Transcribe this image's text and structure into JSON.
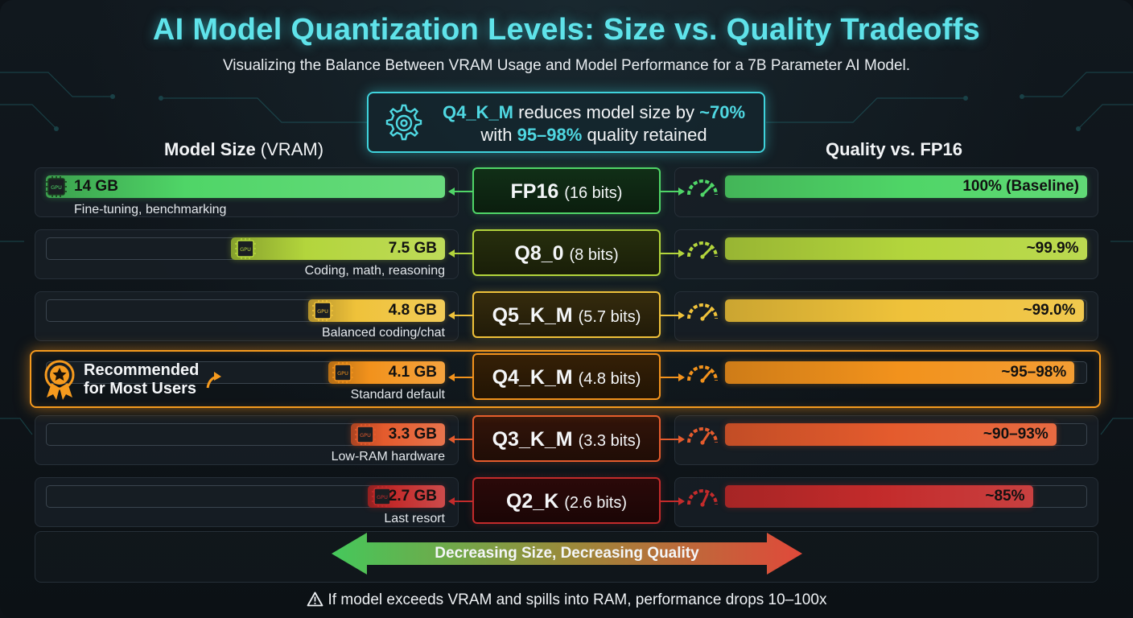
{
  "title": "AI Model Quantization Levels: Size vs. Quality Tradeoffs",
  "subtitle": "Visualizing the Balance Between VRAM Usage and Model Performance for a 7B Parameter AI Model.",
  "callout": {
    "highlight_format": "Q4_K_M",
    "text_1": " reduces model size by ",
    "highlight_reduction": "~70%",
    "text_2": "with ",
    "highlight_quality": "95–98%",
    "text_3": " quality retained"
  },
  "left_heading": {
    "bold": "Model Size",
    "light": " (VRAM)"
  },
  "right_heading": "Quality vs. FP16",
  "gpu_chip_label": "GPU",
  "recommended": {
    "line1": "Recommended",
    "line2": "for Most Users"
  },
  "direction_label": "Decreasing Size, Decreasing Quality",
  "warning": "If model exceeds VRAM and spills into RAM, performance drops 10–100x",
  "colors": {
    "accent_cyan": "#3fd3dc",
    "recommended_orange": "#f59a1e"
  },
  "chart_data": {
    "type": "bar",
    "categories": [
      "FP16",
      "Q8_0",
      "Q5_K_M",
      "Q4_K_M",
      "Q3_K_M",
      "Q2_K"
    ],
    "bits_labels": [
      "(16 bits)",
      "(8 bits)",
      "(5.7 bits)",
      "(4.8 bits)",
      "(3.3 bits)",
      "(2.6 bits)"
    ],
    "series": [
      {
        "name": "Model Size (VRAM)",
        "unit": "GB",
        "values": [
          14,
          7.5,
          4.8,
          4.1,
          3.3,
          2.7
        ],
        "value_labels": [
          "14 GB",
          "7.5 GB",
          "4.8 GB",
          "4.1 GB",
          "3.3 GB",
          "2.7 GB"
        ],
        "use_cases": [
          "Fine-tuning, benchmarking",
          "Coding, math, reasoning",
          "Balanced coding/chat",
          "Standard default",
          "Low-RAM hardware",
          "Last resort"
        ]
      },
      {
        "name": "Quality vs. FP16",
        "unit": "%",
        "values": [
          100,
          99.9,
          99.0,
          96.5,
          91.5,
          85
        ],
        "value_labels": [
          "100% (Baseline)",
          "~99.9%",
          "~99.0%",
          "~95–98%",
          "~90–93%",
          "~85%"
        ]
      }
    ],
    "colors": [
      "#4fd567",
      "#b3d53c",
      "#efc23a",
      "#f2921c",
      "#e45b2d",
      "#c32b2b"
    ],
    "recommended_index": 3
  }
}
